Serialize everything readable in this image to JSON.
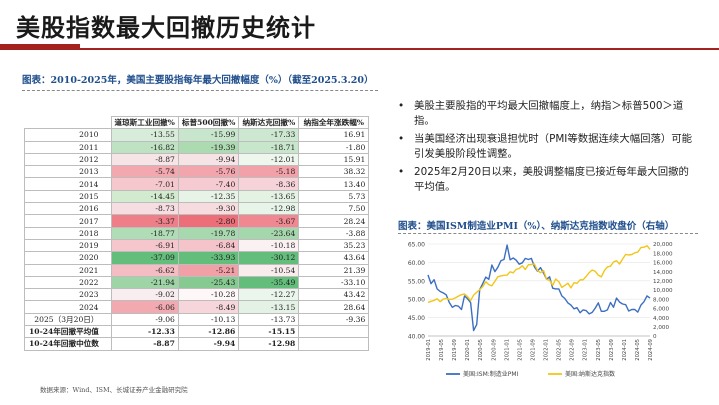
{
  "title": "美股指数最大回撤历史统计",
  "table_caption": "图表：2010-2025年，美国主要股指每年最大回撤幅度（%）（截至2025.3.20）",
  "table": {
    "headers": [
      "",
      "道琼斯工业回撤%",
      "标普500回撤%",
      "纳斯达克回撤%",
      "纳指全年涨跌幅%"
    ],
    "rows": [
      {
        "year": "2010",
        "values": [
          "-13.55",
          "-15.99",
          "-17.33",
          "16.91"
        ],
        "colors": [
          "#d7edd9",
          "#c8e6cb",
          "#cde8d0",
          ""
        ]
      },
      {
        "year": "2011",
        "values": [
          "-16.82",
          "-19.39",
          "-18.71",
          "-1.80"
        ],
        "colors": [
          "#bfe2c3",
          "#acdab1",
          "#c8e6cb",
          ""
        ]
      },
      {
        "year": "2012",
        "values": [
          "-8.87",
          "-9.94",
          "-12.01",
          "15.91"
        ],
        "colors": [
          "#f7e4e7",
          "#f6e3e6",
          "#eef6ee",
          ""
        ]
      },
      {
        "year": "2013",
        "values": [
          "-5.74",
          "-5.76",
          "-5.18",
          "38.32"
        ],
        "colors": [
          "#f3a7ae",
          "#f3a5ad",
          "#f3a1a9",
          ""
        ]
      },
      {
        "year": "2014",
        "values": [
          "-7.01",
          "-7.40",
          "-8.36",
          "13.40"
        ],
        "colors": [
          "#f5c8ce",
          "#f5cad0",
          "#f6d3d8",
          ""
        ]
      },
      {
        "year": "2015",
        "values": [
          "-14.45",
          "-12.35",
          "-13.65",
          "5.73"
        ],
        "colors": [
          "#d2eace",
          "#e6f3e6",
          "#e4f2e4",
          ""
        ]
      },
      {
        "year": "2016",
        "values": [
          "-8.73",
          "-9.30",
          "-12.98",
          "7.50"
        ],
        "colors": [
          "#f6dde1",
          "#f6dbdf",
          "#e7f4e8",
          ""
        ]
      },
      {
        "year": "2017",
        "values": [
          "-3.37",
          "-2.80",
          "-3.67",
          "28.24"
        ],
        "colors": [
          "#ee7f89",
          "#ec6e79",
          "#ef8891",
          ""
        ]
      },
      {
        "year": "2018",
        "values": [
          "-18.77",
          "-19.78",
          "-23.64",
          "-3.88"
        ],
        "colors": [
          "#b0dcb6",
          "#a7d8ae",
          "#a5d7ac",
          ""
        ]
      },
      {
        "year": "2019",
        "values": [
          "-6.91",
          "-6.84",
          "-10.18",
          "35.23"
        ],
        "colors": [
          "#f5c6cc",
          "#f5c4ca",
          "#fbf1f2",
          ""
        ]
      },
      {
        "year": "2020",
        "values": [
          "-37.09",
          "-33.93",
          "-30.12",
          "43.64"
        ],
        "colors": [
          "#63be7b",
          "#63be7b",
          "#63be7b",
          ""
        ]
      },
      {
        "year": "2021",
        "values": [
          "-6.62",
          "-5.21",
          "-10.54",
          "21.39"
        ],
        "colors": [
          "#f4bcc3",
          "#f2a0a8",
          "#f8eced",
          ""
        ]
      },
      {
        "year": "2022",
        "values": [
          "-21.94",
          "-25.43",
          "-35.49",
          "-33.10"
        ],
        "colors": [
          "#9ed4a6",
          "#86ca91",
          "#63be7b",
          ""
        ]
      },
      {
        "year": "2023",
        "values": [
          "-9.02",
          "-10.28",
          "-12.27",
          "43.42"
        ],
        "colors": [
          "#f8eef0",
          "#fdf7f8",
          "#eaf5eb",
          ""
        ]
      },
      {
        "year": "2024",
        "values": [
          "-6.06",
          "-8.49",
          "-13.15",
          "28.64"
        ],
        "colors": [
          "#f2a9b0",
          "#f6d6da",
          "#e4f2e5",
          ""
        ]
      },
      {
        "year": "2025（3月20日）",
        "values": [
          "-9.06",
          "-10.13",
          "-13.73",
          "-9.36"
        ],
        "colors": [
          "",
          "",
          "",
          ""
        ]
      }
    ],
    "summary": [
      {
        "year": "10-24年回撤平均值",
        "values": [
          "-12.33",
          "-12.86",
          "-15.15",
          ""
        ]
      },
      {
        "year": "10-24年回撤中位数",
        "values": [
          "-8.87",
          "-9.94",
          "-12.98",
          ""
        ]
      }
    ]
  },
  "footnote": "数据来源：Wind、ISM、长城证券产业金融研究院",
  "bullets": [
    "美股主要股指的平均最大回撤幅度上，纳指＞标普500＞道指。",
    "当美国经济出现衰退担忧时（PMI等数据连续大幅回落）可能引发美股阶段性调整。",
    "2025年2月20日以来，美股调整幅度已接近每年最大回撤的平均值。"
  ],
  "chart_caption": "图表：美国ISM制造业PMI（%）、纳斯达克指数收盘价（右轴）",
  "chart_data": {
    "type": "line",
    "x_ticks": [
      "2019-01",
      "2019-05",
      "2019-09",
      "2020-01",
      "2020-05",
      "2020-09",
      "2021-01",
      "2021-05",
      "2021-09",
      "2022-01",
      "2022-05",
      "2022-09",
      "2023-01",
      "2023-05",
      "2023-09",
      "2024-01",
      "2024-05",
      "2024-09"
    ],
    "left_axis": {
      "min": 40,
      "max": 65,
      "ticks": [
        "40.00",
        "45.00",
        "50.00",
        "55.00",
        "60.00",
        "65.00"
      ]
    },
    "right_axis": {
      "min": 0,
      "max": 20000,
      "ticks": [
        "0",
        "2,000",
        "4,000",
        "6,000",
        "8,000",
        "10,000",
        "12,000",
        "14,000",
        "16,000",
        "18,000",
        "20,000"
      ]
    },
    "series": [
      {
        "name": "美国:ISM:制造业PMI",
        "axis": "left",
        "color": "#3c6fc0",
        "values": [
          56.6,
          54.2,
          55.3,
          52.8,
          52.1,
          51.7,
          51.2,
          49.1,
          47.8,
          48.3,
          48.1,
          47.2,
          50.9,
          50.1,
          49.1,
          41.5,
          43.1,
          52.6,
          54.2,
          56.0,
          55.4,
          59.3,
          57.5,
          58.7,
          60.5,
          60.8,
          64.7,
          60.7,
          61.2,
          60.6,
          59.5,
          59.9,
          61.1,
          60.8,
          61.1,
          58.8,
          57.6,
          58.6,
          57.1,
          55.4,
          56.1,
          53.0,
          52.8,
          52.8,
          50.9,
          50.2,
          49.0,
          48.4,
          47.4,
          47.7,
          46.3,
          47.1,
          46.9,
          46.0,
          46.4,
          47.6,
          49.0,
          46.7,
          46.7,
          47.1,
          49.1,
          47.8,
          50.3,
          49.2,
          48.7,
          48.5,
          46.8,
          47.2,
          47.2,
          46.5,
          48.4,
          49.3,
          50.9,
          50.3
        ]
      },
      {
        "name": "美国:纳斯达克指数",
        "axis": "right",
        "color": "#f2c618",
        "values": [
          7282,
          7533,
          7729,
          8095,
          7453,
          8006,
          8175,
          7963,
          7999,
          8292,
          8665,
          8972,
          9150,
          8567,
          7700,
          8890,
          9490,
          10058,
          10745,
          11775,
          11167,
          10911,
          11905,
          12888,
          13070,
          13192,
          13247,
          13962,
          13749,
          14504,
          14673,
          15259,
          14449,
          15498,
          15538,
          15645,
          14240,
          13751,
          14220,
          12334,
          12081,
          11029,
          12390,
          11816,
          10576,
          10988,
          11468,
          10466,
          11584,
          11456,
          12222,
          12226,
          12936,
          13788,
          14346,
          14035,
          13219,
          12851,
          14226,
          15011,
          15164,
          16092,
          16379,
          15658,
          16735,
          17733,
          17599,
          17713,
          18095,
          18240,
          19218,
          19311,
          19627,
          18847
        ]
      }
    ],
    "legend_position": "bottom"
  }
}
